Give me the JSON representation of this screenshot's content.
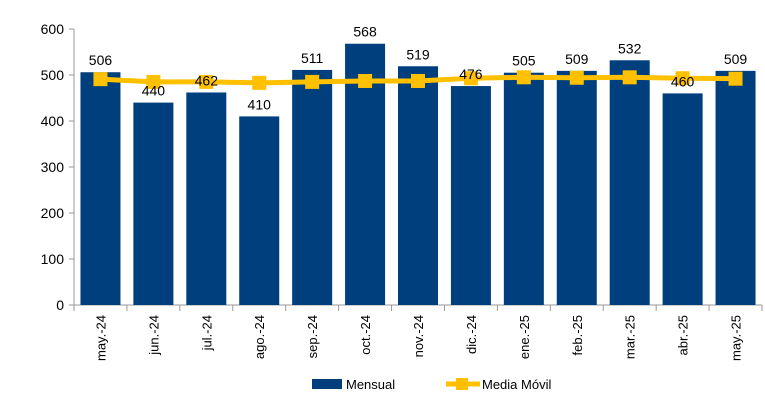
{
  "chart_data": {
    "type": "bar",
    "categories": [
      "may.-24",
      "jun.-24",
      "jul.-24",
      "ago.-24",
      "sep.-24",
      "oct.-24",
      "nov.-24",
      "dic.-24",
      "ene.-25",
      "feb.-25",
      "mar.-25",
      "abr.-25",
      "may.-25"
    ],
    "series": [
      {
        "name": "Mensual",
        "type": "bar",
        "color": "#003f7d",
        "values": [
          506,
          440,
          462,
          410,
          511,
          568,
          519,
          476,
          505,
          509,
          532,
          460,
          509
        ]
      },
      {
        "name": "Media Móvil",
        "type": "line",
        "color": "#ffc000",
        "values": [
          491,
          485,
          485,
          483,
          485,
          487,
          487,
          493,
          495,
          494,
          495,
          493,
          492
        ]
      }
    ],
    "data_labels": [
      "506",
      "440",
      "462",
      "410",
      "511",
      "568",
      "519",
      "476",
      "505",
      "509",
      "532",
      "460",
      "509"
    ],
    "yticks": [
      "0",
      "100",
      "200",
      "300",
      "400",
      "500",
      "600"
    ],
    "ylim": [
      0,
      600
    ],
    "grid": false,
    "legend": "bottom"
  }
}
